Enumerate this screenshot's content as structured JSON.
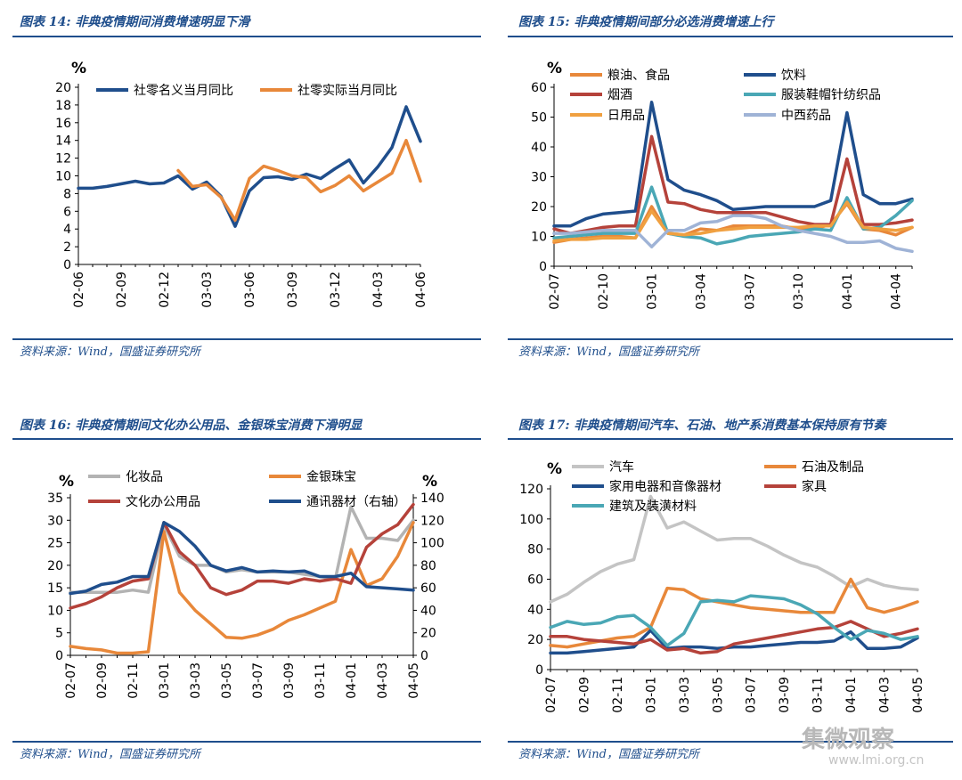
{
  "source_text": "资料来源：Wind，国盛证券研究所",
  "watermark": {
    "text": "集微观察",
    "url": "www.lmi.org.cn"
  },
  "chart_data": [
    {
      "type": "line",
      "title": "图表 14:  非典疫情期间消费增速明显下滑",
      "ylabel": "%",
      "ylim": [
        0,
        20
      ],
      "yticks": [
        0,
        2,
        4,
        6,
        8,
        10,
        12,
        14,
        16,
        18,
        20
      ],
      "x": [
        "02-06",
        "02-07",
        "02-08",
        "02-09",
        "02-10",
        "02-11",
        "02-12",
        "03-01",
        "03-02",
        "03-03",
        "03-04",
        "03-05",
        "03-06",
        "03-07",
        "03-08",
        "03-09",
        "03-10",
        "03-11",
        "03-12",
        "04-01",
        "04-02",
        "04-03",
        "04-04",
        "04-05",
        "04-06"
      ],
      "xtick_labels": [
        "02-06",
        "02-09",
        "02-12",
        "03-03",
        "03-06",
        "03-09",
        "03-12",
        "04-03",
        "04-06"
      ],
      "legend": "top-left",
      "series": [
        {
          "name": "社零名义当月同比",
          "color": "#1f4e8c",
          "values": [
            8.6,
            8.6,
            8.8,
            9.1,
            9.4,
            9.1,
            9.2,
            10.0,
            8.5,
            9.3,
            7.7,
            4.3,
            8.3,
            9.8,
            9.9,
            9.6,
            10.2,
            9.7,
            10.8,
            11.8,
            9.2,
            11.0,
            13.2,
            17.8,
            13.9
          ]
        },
        {
          "name": "社零实际当月同比",
          "color": "#e8883a",
          "values": [
            null,
            null,
            null,
            null,
            null,
            null,
            null,
            10.6,
            8.8,
            9.0,
            7.6,
            5.0,
            9.7,
            11.1,
            10.6,
            10.0,
            9.8,
            8.2,
            8.9,
            10.0,
            8.3,
            9.3,
            10.3,
            14.0,
            9.4
          ]
        }
      ]
    },
    {
      "type": "line",
      "title": "图表 15:  非典疫情期间部分必选消费增速上行",
      "ylabel": "%",
      "ylim": [
        0,
        60
      ],
      "yticks": [
        0,
        10,
        20,
        30,
        40,
        50,
        60
      ],
      "x": [
        "02-07",
        "02-08",
        "02-09",
        "02-10",
        "02-11",
        "02-12",
        "03-01",
        "03-02",
        "03-03",
        "03-04",
        "03-05",
        "03-06",
        "03-07",
        "03-08",
        "03-09",
        "03-10",
        "03-11",
        "03-12",
        "04-01",
        "04-02",
        "04-03",
        "04-04",
        "04-05"
      ],
      "xtick_labels": [
        "02-07",
        "02-10",
        "03-01",
        "03-04",
        "03-07",
        "03-10",
        "04-01",
        "04-04"
      ],
      "legend": "top",
      "series": [
        {
          "name": "粮油、食品",
          "color": "#e8883a",
          "values": [
            8,
            9,
            9.5,
            10,
            10,
            9.5,
            20,
            11,
            10.5,
            12.5,
            12,
            13.5,
            13.5,
            13.5,
            13.5,
            12.5,
            12.5,
            14,
            21,
            12.5,
            12,
            10.5,
            13
          ]
        },
        {
          "name": "饮料",
          "color": "#1f4e8c",
          "values": [
            13.5,
            13.5,
            16,
            17.5,
            18,
            18.5,
            55,
            29,
            25.5,
            24,
            22,
            19,
            19.5,
            20,
            20,
            20,
            20,
            22,
            51.5,
            24,
            21,
            21,
            22.5
          ]
        },
        {
          "name": "烟酒",
          "color": "#b5423a",
          "values": [
            12.5,
            11,
            12,
            13,
            13.5,
            13.5,
            43.5,
            21.5,
            21,
            19,
            18,
            18,
            18,
            18,
            16.5,
            15,
            14,
            14,
            36,
            14,
            14,
            14.5,
            15.5
          ]
        },
        {
          "name": "服装鞋帽针纺织品",
          "color": "#4aa7b5",
          "values": [
            9.5,
            10,
            10.5,
            11,
            11,
            11,
            26.5,
            11,
            10,
            9.5,
            7.5,
            8.5,
            10,
            10.5,
            11,
            11.5,
            12.5,
            12,
            23,
            12.5,
            13,
            17,
            22
          ]
        },
        {
          "name": "日用品",
          "color": "#f0a040",
          "values": [
            8.5,
            9,
            9,
            9.5,
            9.5,
            9.5,
            18.5,
            11,
            10.5,
            11,
            12,
            12.5,
            13,
            13,
            13,
            13,
            13.5,
            13.5,
            21.5,
            13,
            12.5,
            12,
            13
          ]
        },
        {
          "name": "中西药品",
          "color": "#9fb3d6",
          "values": [
            11,
            11,
            11.5,
            12,
            12,
            12,
            6.5,
            12,
            12,
            14.5,
            15,
            17,
            17,
            16,
            13.5,
            12,
            11,
            10,
            8,
            8,
            8.5,
            6,
            5
          ]
        }
      ]
    },
    {
      "type": "line",
      "title": "图表 16:  非典疫情期间文化办公用品、金银珠宝消费下滑明显",
      "ylabel": "%",
      "y2label": "%",
      "ylim": [
        0,
        35
      ],
      "y2lim": [
        0,
        140
      ],
      "yticks": [
        0,
        5,
        10,
        15,
        20,
        25,
        30,
        35
      ],
      "y2ticks": [
        0,
        20,
        40,
        60,
        80,
        100,
        120,
        140
      ],
      "x": [
        "02-07",
        "02-08",
        "02-09",
        "02-10",
        "02-11",
        "02-12",
        "03-01",
        "03-02",
        "03-03",
        "03-04",
        "03-05",
        "03-06",
        "03-07",
        "03-08",
        "03-09",
        "03-10",
        "03-11",
        "03-12",
        "04-01",
        "04-02",
        "04-03",
        "04-04",
        "04-05"
      ],
      "xtick_labels": [
        "02-07",
        "02-09",
        "02-11",
        "03-01",
        "03-03",
        "03-05",
        "03-07",
        "03-09",
        "03-11",
        "04-01",
        "04-03",
        "04-05"
      ],
      "legend": "top",
      "series": [
        {
          "name": "化妆品",
          "color": "#b3b3b3",
          "axis": "left",
          "values": [
            14,
            14,
            14,
            14,
            14.5,
            14,
            29,
            22,
            20,
            20,
            18.5,
            19,
            18.5,
            18.5,
            18.5,
            18,
            17.5,
            17,
            33,
            26,
            26,
            25.5,
            30
          ]
        },
        {
          "name": "金银珠宝",
          "color": "#e8883a",
          "axis": "left",
          "values": [
            2,
            1.5,
            1.2,
            0.5,
            0.5,
            0.8,
            27.5,
            14,
            10,
            7,
            4,
            3.8,
            4.5,
            5.8,
            7.8,
            9,
            10.5,
            12,
            23.5,
            15.5,
            17,
            22,
            29.5
          ]
        },
        {
          "name": "文化办公用品",
          "color": "#b5423a",
          "axis": "left",
          "values": [
            10.5,
            11.5,
            13,
            15,
            16.5,
            17,
            29.5,
            23,
            20,
            15,
            13.5,
            14.5,
            16.5,
            16.5,
            16,
            17,
            16.5,
            17,
            16,
            24,
            27,
            29,
            33.5
          ]
        },
        {
          "name": "通讯器材（右轴）",
          "color": "#1f4e8c",
          "axis": "right",
          "values": [
            55,
            57,
            63,
            65,
            70,
            70,
            118,
            110,
            97,
            80,
            75,
            78,
            74,
            75,
            74,
            75,
            70,
            70,
            73,
            61,
            60,
            59,
            58
          ]
        }
      ]
    },
    {
      "type": "line",
      "title": "图表 17:  非典疫情期间汽车、石油、地产系消费基本保持原有节奏",
      "ylabel": "%",
      "ylim": [
        0,
        120
      ],
      "yticks": [
        0,
        20,
        40,
        60,
        80,
        100,
        120
      ],
      "x": [
        "02-07",
        "02-08",
        "02-09",
        "02-10",
        "02-11",
        "02-12",
        "03-01",
        "03-02",
        "03-03",
        "03-04",
        "03-05",
        "03-06",
        "03-07",
        "03-08",
        "03-09",
        "03-10",
        "03-11",
        "03-12",
        "04-01",
        "04-02",
        "04-03",
        "04-04",
        "04-05"
      ],
      "xtick_labels": [
        "02-07",
        "02-09",
        "02-11",
        "03-01",
        "03-03",
        "03-05",
        "03-07",
        "03-09",
        "03-11",
        "04-01",
        "04-03",
        "04-05"
      ],
      "legend": "top",
      "series": [
        {
          "name": "汽车",
          "color": "#c4c4c4",
          "values": [
            45,
            50,
            58,
            65,
            70,
            73,
            115,
            94,
            98,
            92,
            86,
            87,
            87,
            82,
            76,
            71,
            68,
            62,
            55,
            60,
            56,
            54,
            53
          ]
        },
        {
          "name": "石油及制品",
          "color": "#e8883a",
          "values": [
            16,
            15,
            17,
            19,
            21,
            22,
            28,
            54,
            53,
            47,
            45,
            43,
            41,
            40,
            39,
            38,
            38,
            38,
            60,
            41,
            38,
            41,
            45
          ]
        },
        {
          "name": "家用电器和音像器材",
          "color": "#1f4e8c",
          "values": [
            11,
            11,
            12,
            13,
            14,
            15,
            26,
            14,
            15,
            15,
            14,
            15,
            15,
            16,
            17,
            18,
            18,
            19,
            25,
            14,
            14,
            15,
            21
          ]
        },
        {
          "name": "家具",
          "color": "#b5423a",
          "values": [
            22,
            22,
            20,
            19,
            18,
            17,
            20,
            13,
            14,
            11,
            12,
            17,
            19,
            21,
            23,
            25,
            27,
            28,
            32,
            27,
            22,
            24,
            27
          ]
        },
        {
          "name": "建筑及装潢材料",
          "color": "#4aa7b5",
          "values": [
            28,
            32,
            30,
            31,
            35,
            36,
            28,
            16,
            24,
            45,
            46,
            45,
            49,
            48,
            47,
            43,
            37,
            28,
            20,
            26,
            24,
            20,
            22
          ]
        }
      ]
    }
  ]
}
